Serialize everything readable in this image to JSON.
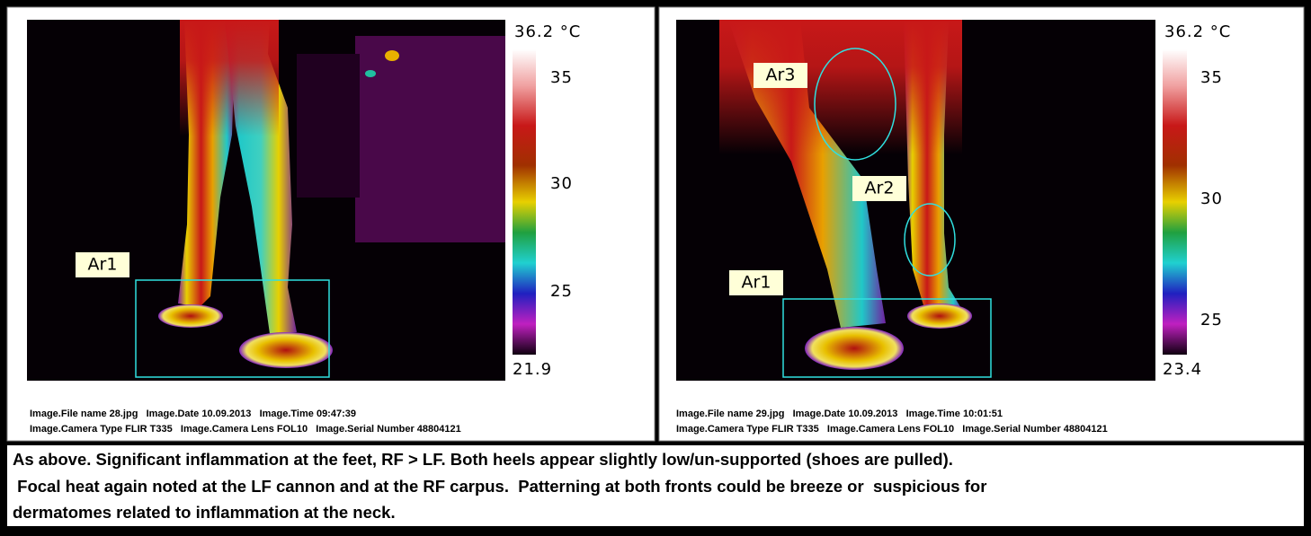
{
  "panels": [
    {
      "labels": [
        "Ar1"
      ],
      "scale": {
        "max": "36.2 °C",
        "ticks": [
          "35",
          "30",
          "25"
        ],
        "min": "21.9"
      },
      "caption": [
        "Image.File name 28.jpg   Image.Date 10.09.2013   Image.Time 09:47:39",
        "Image.Camera Type FLIR T335   Image.Camera Lens FOL10   Image.Serial Number 48804121"
      ]
    },
    {
      "labels": [
        "Ar3",
        "Ar2",
        "Ar1"
      ],
      "scale": {
        "max": "36.2 °C",
        "ticks": [
          "35",
          "30",
          "25"
        ],
        "min": "23.4"
      },
      "caption": [
        "Image.File name 29.jpg   Image.Date 10.09.2013   Image.Time 10:01:51",
        "Image.Camera Type FLIR T335   Image.Camera Lens FOL10   Image.Serial Number 48804121"
      ]
    }
  ],
  "notes": [
    "As above. Significant inflammation at the feet, RF > LF. Both heels appear slightly low/un-supported (shoes are pulled).",
    " Focal heat again noted at the LF cannon and at the RF carpus.  Patterning at both fronts could be breeze or  suspicious for",
    "dermatomes related to inflammation at the neck."
  ]
}
